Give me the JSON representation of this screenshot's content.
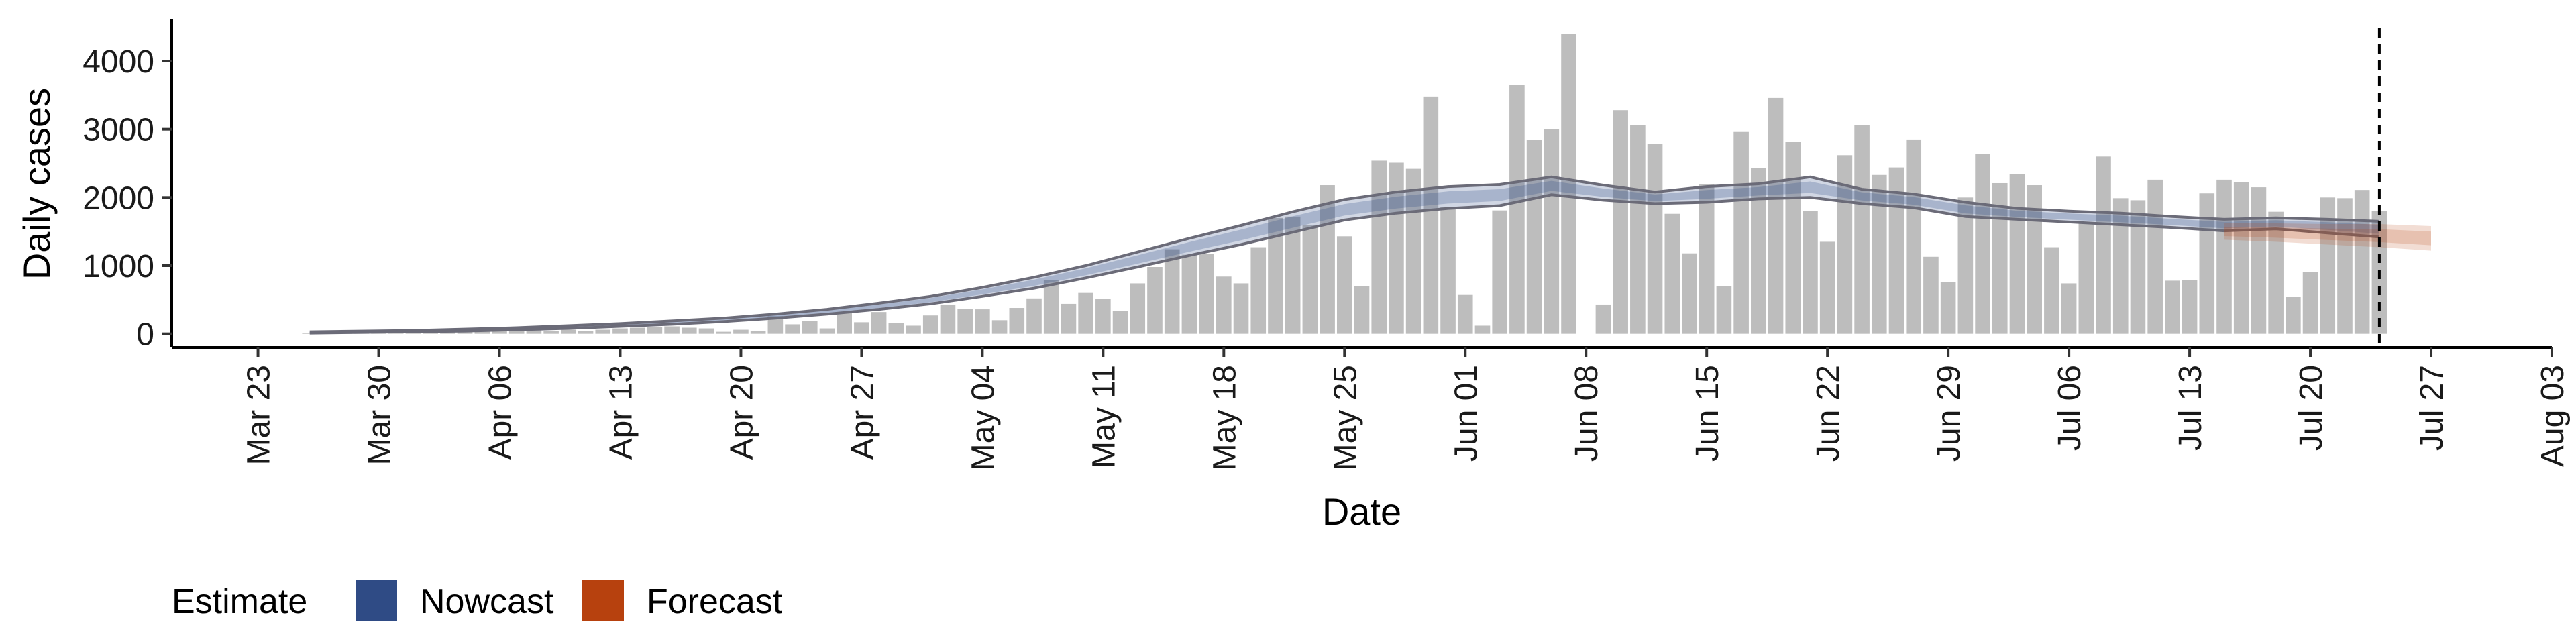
{
  "chart_data": {
    "type": "bar",
    "title": "",
    "xlabel": "Date",
    "ylabel": "Daily cases",
    "ylim": [
      -200,
      4600
    ],
    "xlim": [
      "2020-03-18",
      "2020-08-03"
    ],
    "y_ticks": [
      0,
      1000,
      2000,
      3000,
      4000
    ],
    "x_ticks": [
      {
        "date": "2020-03-23",
        "label": "Mar 23"
      },
      {
        "date": "2020-03-30",
        "label": "Mar 30"
      },
      {
        "date": "2020-04-06",
        "label": "Apr 06"
      },
      {
        "date": "2020-04-13",
        "label": "Apr 13"
      },
      {
        "date": "2020-04-20",
        "label": "Apr 20"
      },
      {
        "date": "2020-04-27",
        "label": "Apr 27"
      },
      {
        "date": "2020-05-04",
        "label": "May 04"
      },
      {
        "date": "2020-05-11",
        "label": "May 11"
      },
      {
        "date": "2020-05-18",
        "label": "May 18"
      },
      {
        "date": "2020-05-25",
        "label": "May 25"
      },
      {
        "date": "2020-06-01",
        "label": "Jun 01"
      },
      {
        "date": "2020-06-08",
        "label": "Jun 08"
      },
      {
        "date": "2020-06-15",
        "label": "Jun 15"
      },
      {
        "date": "2020-06-22",
        "label": "Jun 22"
      },
      {
        "date": "2020-06-29",
        "label": "Jun 29"
      },
      {
        "date": "2020-07-06",
        "label": "Jul 06"
      },
      {
        "date": "2020-07-13",
        "label": "Jul 13"
      },
      {
        "date": "2020-07-20",
        "label": "Jul 20"
      },
      {
        "date": "2020-07-27",
        "label": "Jul 27"
      },
      {
        "date": "2020-08-03",
        "label": "Aug 03"
      }
    ],
    "grid": false,
    "vline_date": "2020-07-24",
    "bars": {
      "start_date": "2020-03-26",
      "color": "#bdbdbd",
      "values": [
        10,
        15,
        20,
        25,
        30,
        30,
        35,
        40,
        45,
        50,
        60,
        55,
        70,
        60,
        40,
        60,
        40,
        60,
        80,
        90,
        100,
        110,
        90,
        80,
        30,
        60,
        40,
        260,
        140,
        190,
        80,
        320,
        170,
        320,
        160,
        120,
        270,
        430,
        370,
        360,
        200,
        380,
        520,
        790,
        440,
        600,
        510,
        340,
        740,
        980,
        1240,
        1160,
        1170,
        840,
        740,
        1270,
        1700,
        1720,
        1590,
        2180,
        1430,
        700,
        2540,
        2510,
        2420,
        3480,
        1860,
        570,
        120,
        1810,
        3650,
        2840,
        3000,
        4400,
        0,
        430,
        3280,
        3060,
        2790,
        1760,
        1180,
        2190,
        700,
        2960,
        2430,
        3460,
        2810,
        1800,
        1350,
        2620,
        3060,
        2330,
        2440,
        2850,
        1130,
        760,
        2000,
        2640,
        2210,
        2340,
        2180,
        1270,
        740,
        1640,
        2600,
        1990,
        1960,
        2260,
        780,
        790,
        2060,
        2260,
        2220,
        2150,
        1790,
        540,
        910,
        2000,
        1990,
        2110,
        1800
      ]
    },
    "series": [
      {
        "name": "Nowcast",
        "color": "#2f4b85",
        "start_date": "2020-03-26",
        "step_days": 3,
        "lower": [
          10,
          20,
          30,
          40,
          60,
          80,
          110,
          140,
          180,
          230,
          290,
          360,
          440,
          550,
          670,
          820,
          980,
          1150,
          1310,
          1490,
          1670,
          1770,
          1840,
          1880,
          2040,
          1960,
          1910,
          1930,
          1980,
          2000,
          1910,
          1850,
          1720,
          1680,
          1640,
          1600,
          1560,
          1510,
          1540,
          1480,
          1420
        ],
        "upper": [
          30,
          40,
          50,
          70,
          90,
          120,
          150,
          190,
          230,
          290,
          360,
          450,
          550,
          680,
          830,
          1000,
          1200,
          1400,
          1590,
          1790,
          1970,
          2080,
          2160,
          2190,
          2300,
          2180,
          2080,
          2160,
          2200,
          2300,
          2120,
          2050,
          1930,
          1840,
          1800,
          1770,
          1720,
          1680,
          1700,
          1680,
          1650
        ]
      },
      {
        "name": "Forecast",
        "color": "#b7410e",
        "start_date": "2020-07-15",
        "step_days": 3,
        "lower": [
          1380,
          1350,
          1310,
          1270,
          1220
        ],
        "upper": [
          1620,
          1620,
          1610,
          1610,
          1580
        ]
      }
    ]
  },
  "legend": {
    "title": "Estimate",
    "items": [
      {
        "label": "Nowcast",
        "color": "#2f4b85"
      },
      {
        "label": "Forecast",
        "color": "#b7410e"
      }
    ]
  }
}
